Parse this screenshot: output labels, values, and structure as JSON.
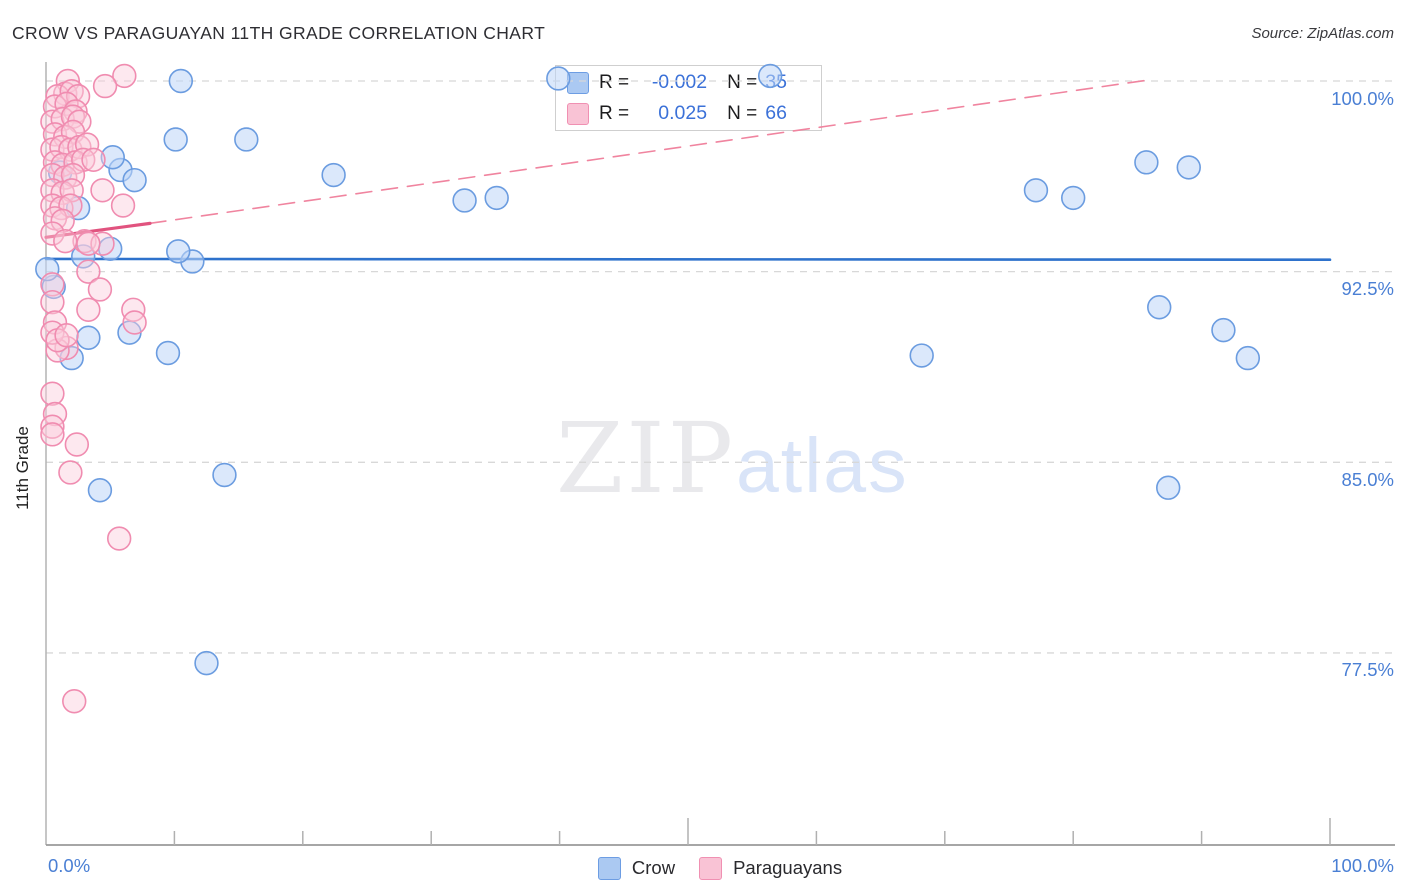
{
  "title": "CROW VS PARAGUAYAN 11TH GRADE CORRELATION CHART",
  "source": "Source: ZipAtlas.com",
  "watermark": {
    "part1": "ZIP",
    "part2": "atlas"
  },
  "stats_box": {
    "rows": [
      {
        "series": "Crow",
        "r_label": "R =",
        "r_value": "-0.002",
        "n_label": "N =",
        "n_value": "35"
      },
      {
        "series": "Paraguayans",
        "r_label": "R =",
        "r_value": "0.025",
        "n_label": "N =",
        "n_value": "66"
      }
    ]
  },
  "legend": {
    "crow": "Crow",
    "paraguayans": "Paraguayans"
  },
  "colors": {
    "accent_label_blue": "#4a7fd4",
    "stat_value_blue": "#3b71d8",
    "crow_stroke": "#6b9ce0",
    "crow_fill": "rgba(190,214,248,0.55)",
    "paraguayan_stroke": "#f08cb0",
    "paraguayan_fill": "rgba(250,203,219,0.45)",
    "crow_trend": "#2e72cc",
    "paraguayan_trend": "#e1537f",
    "paraguayan_trend_dashed": "#f0849f",
    "gridline": "#d8d8d8",
    "axis": "#9a9a9a"
  },
  "chart_data": {
    "type": "scatter",
    "title": "CROW VS PARAGUAYAN 11TH GRADE CORRELATION CHART",
    "xlabel": "",
    "ylabel": "11th Grade",
    "x_range": [
      0,
      100
    ],
    "y_range_visible": [
      70,
      101
    ],
    "grid": "horizontal-dashed",
    "legend_position": "bottom-center",
    "y_gridlines": [
      100.0,
      92.5,
      85.0,
      77.5
    ],
    "y_tick_labels": [
      "100.0%",
      "92.5%",
      "85.0%",
      "77.5%"
    ],
    "x_tick_labels": {
      "left": "0.0%",
      "right": "100.0%"
    },
    "x_minor_ticks": [
      10,
      20,
      30,
      40,
      60,
      70,
      80,
      90
    ],
    "x_major_ticks": [
      50,
      100
    ],
    "series": [
      {
        "name": "Crow",
        "stroke": "#6b9ce0",
        "fill": "rgba(190,214,248,0.55)",
        "points": [
          [
            10.5,
            100.0
          ],
          [
            39.9,
            100.1
          ],
          [
            56.4,
            100.2
          ],
          [
            10.1,
            97.7
          ],
          [
            15.6,
            97.7
          ],
          [
            22.4,
            96.3
          ],
          [
            5.8,
            96.5
          ],
          [
            6.9,
            96.1
          ],
          [
            5.2,
            97.0
          ],
          [
            1.1,
            96.4
          ],
          [
            32.6,
            95.3
          ],
          [
            35.1,
            95.4
          ],
          [
            77.1,
            95.7
          ],
          [
            80.0,
            95.4
          ],
          [
            85.7,
            96.8
          ],
          [
            89.0,
            96.6
          ],
          [
            68.2,
            89.2
          ],
          [
            86.7,
            91.1
          ],
          [
            91.7,
            90.2
          ],
          [
            93.6,
            89.1
          ],
          [
            4.2,
            83.9
          ],
          [
            13.9,
            84.5
          ],
          [
            12.5,
            77.1
          ],
          [
            87.4,
            84.0
          ],
          [
            3.3,
            89.9
          ],
          [
            6.5,
            90.1
          ],
          [
            2.0,
            89.1
          ],
          [
            9.5,
            89.3
          ],
          [
            0.6,
            91.9
          ],
          [
            2.9,
            93.1
          ],
          [
            5.0,
            93.4
          ],
          [
            11.4,
            92.9
          ],
          [
            10.3,
            93.3
          ],
          [
            2.5,
            95.0
          ],
          [
            0.1,
            92.6
          ]
        ]
      },
      {
        "name": "Paraguayans",
        "stroke": "#f08cb0",
        "fill": "rgba(250,203,219,0.45)",
        "points": [
          [
            6.1,
            100.2
          ],
          [
            1.7,
            100.0
          ],
          [
            4.6,
            99.8
          ],
          [
            1.5,
            99.5
          ],
          [
            0.9,
            99.4
          ],
          [
            2.0,
            99.6
          ],
          [
            2.5,
            99.4
          ],
          [
            0.7,
            99.0
          ],
          [
            1.6,
            99.1
          ],
          [
            2.3,
            98.8
          ],
          [
            0.5,
            98.4
          ],
          [
            1.3,
            98.5
          ],
          [
            2.1,
            98.6
          ],
          [
            2.6,
            98.4
          ],
          [
            0.7,
            97.9
          ],
          [
            1.5,
            97.8
          ],
          [
            2.1,
            98.0
          ],
          [
            0.5,
            97.3
          ],
          [
            1.2,
            97.4
          ],
          [
            1.9,
            97.3
          ],
          [
            2.6,
            97.4
          ],
          [
            3.2,
            97.5
          ],
          [
            0.7,
            96.8
          ],
          [
            1.3,
            96.7
          ],
          [
            2.3,
            96.8
          ],
          [
            2.9,
            96.9
          ],
          [
            3.7,
            96.9
          ],
          [
            4.4,
            95.7
          ],
          [
            6.0,
            95.1
          ],
          [
            0.5,
            96.3
          ],
          [
            1.5,
            96.2
          ],
          [
            2.1,
            96.3
          ],
          [
            0.5,
            95.7
          ],
          [
            1.3,
            95.6
          ],
          [
            2.0,
            95.7
          ],
          [
            0.5,
            95.1
          ],
          [
            1.2,
            95.0
          ],
          [
            1.9,
            95.1
          ],
          [
            0.7,
            94.6
          ],
          [
            1.3,
            94.5
          ],
          [
            0.5,
            94.0
          ],
          [
            3.0,
            93.7
          ],
          [
            4.4,
            93.6
          ],
          [
            1.5,
            93.7
          ],
          [
            3.3,
            93.6
          ],
          [
            3.3,
            92.5
          ],
          [
            4.2,
            91.8
          ],
          [
            6.8,
            91.0
          ],
          [
            6.9,
            90.5
          ],
          [
            3.3,
            91.0
          ],
          [
            1.6,
            89.5
          ],
          [
            0.9,
            89.4
          ],
          [
            0.5,
            92.0
          ],
          [
            0.5,
            91.3
          ],
          [
            0.7,
            90.5
          ],
          [
            0.5,
            90.1
          ],
          [
            0.9,
            89.8
          ],
          [
            1.6,
            90.0
          ],
          [
            0.5,
            87.7
          ],
          [
            0.7,
            86.9
          ],
          [
            0.5,
            86.4
          ],
          [
            0.5,
            86.1
          ],
          [
            2.4,
            85.7
          ],
          [
            1.9,
            84.6
          ],
          [
            5.7,
            82.0
          ],
          [
            2.2,
            75.6
          ]
        ]
      }
    ],
    "trend_lines": [
      {
        "series": "Paraguayans",
        "style": "dashed",
        "from": [
          8.1,
          94.4
        ],
        "to": [
          86.0,
          100.05
        ]
      },
      {
        "series": "Paraguayans",
        "style": "solid",
        "from": [
          0.0,
          93.85
        ],
        "to": [
          8.1,
          94.4
        ]
      },
      {
        "series": "Crow",
        "style": "solid",
        "from": [
          0.0,
          93.0
        ],
        "to": [
          100.0,
          92.97
        ]
      }
    ],
    "stats": [
      {
        "series": "Crow",
        "R": -0.002,
        "N": 35
      },
      {
        "series": "Paraguayans",
        "R": 0.025,
        "N": 66
      }
    ]
  }
}
